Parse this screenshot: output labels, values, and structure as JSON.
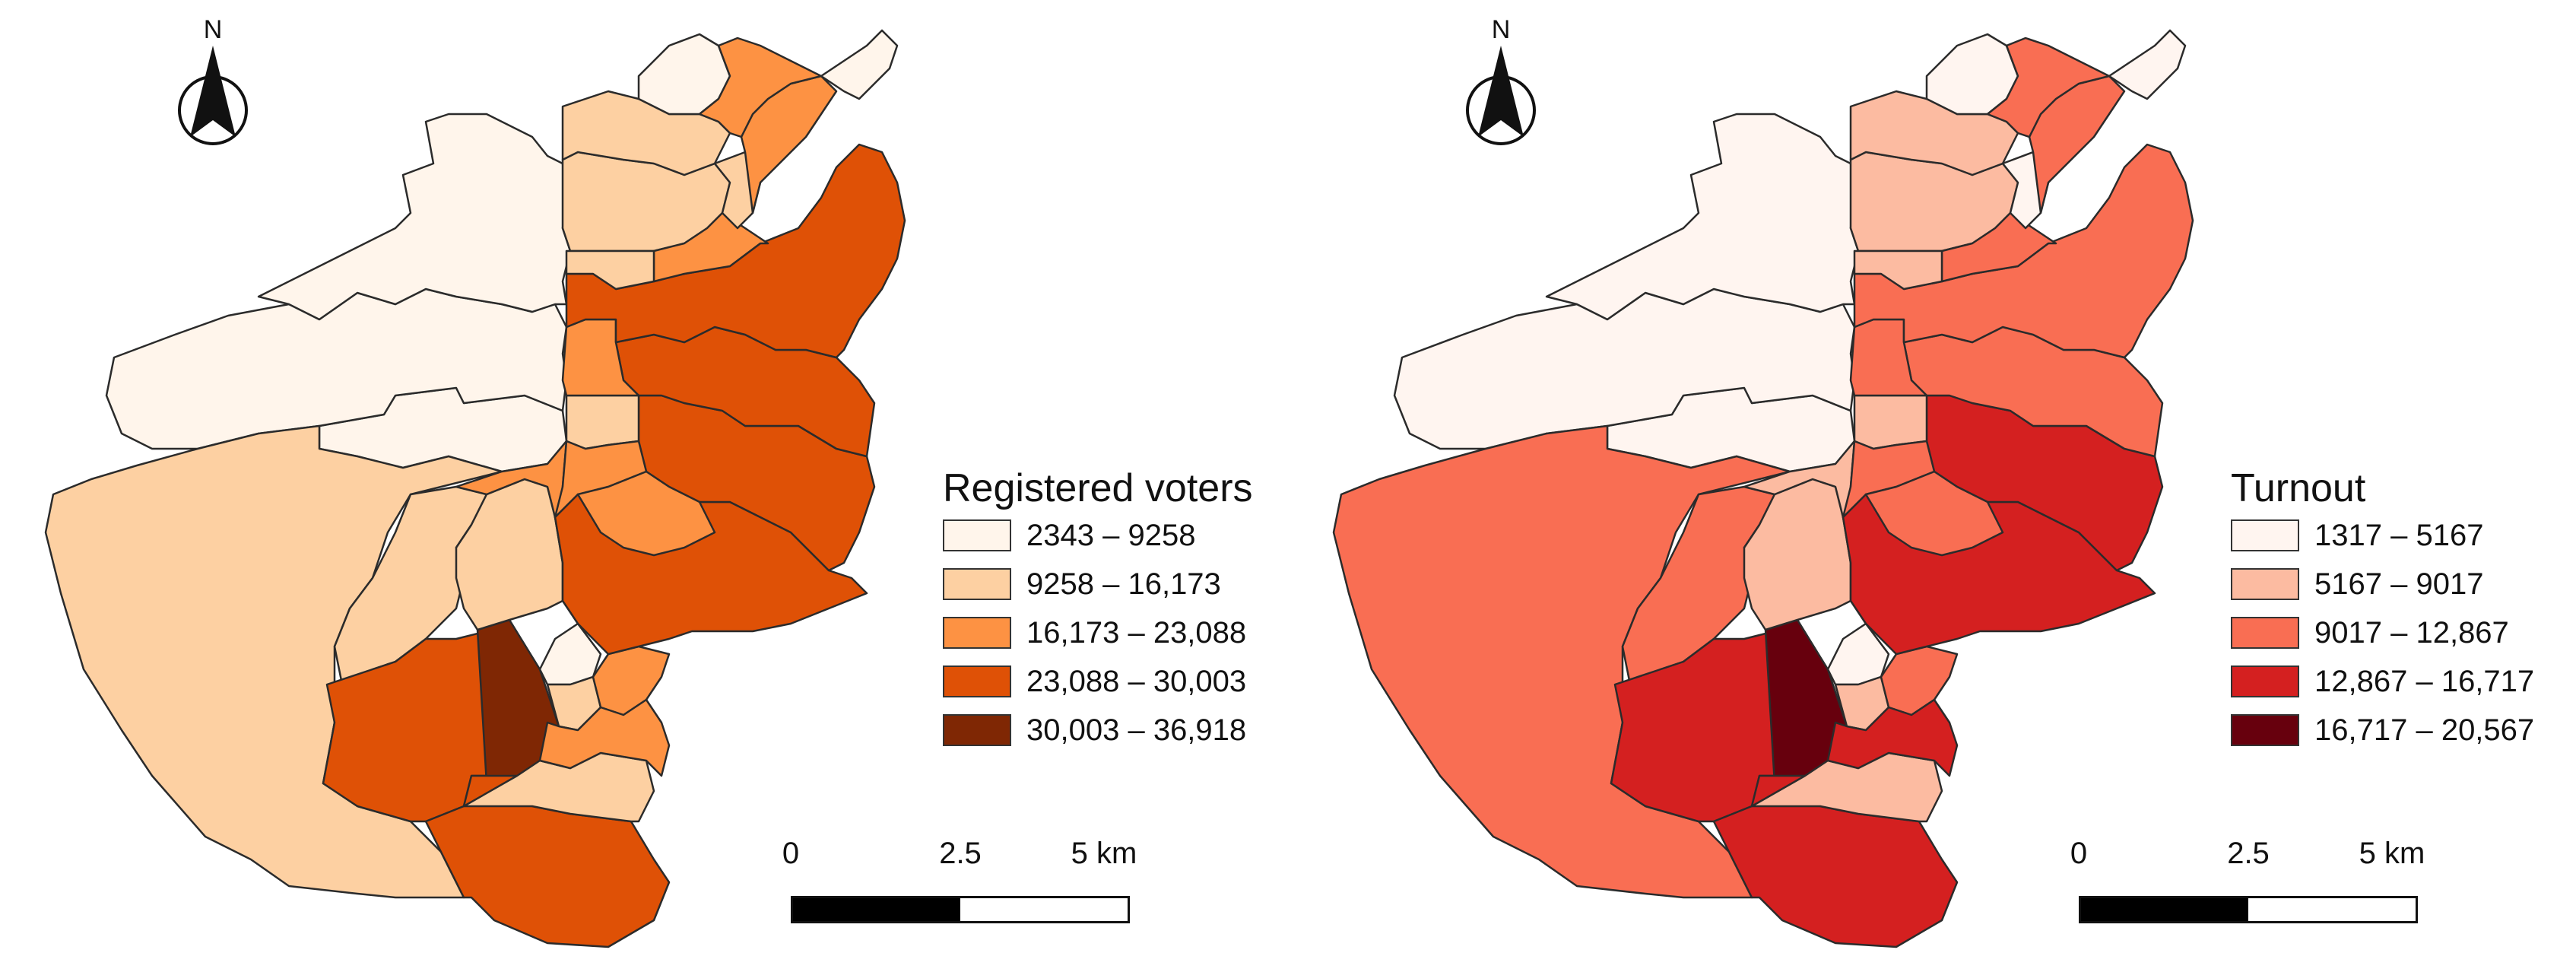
{
  "maps": [
    {
      "id": "registered",
      "north_label": "N",
      "legend": {
        "title": "Registered voters",
        "classes": [
          {
            "label": "2343 – 9258",
            "color": "#fff5eb"
          },
          {
            "label": "9258 – 16,173",
            "color": "#fdd0a2"
          },
          {
            "label": "16,173 – 23,088",
            "color": "#fd9243"
          },
          {
            "label": "23,088 – 30,003",
            "color": "#df5106"
          },
          {
            "label": "30,003 – 36,918",
            "color": "#7f2704"
          }
        ]
      },
      "scale": {
        "labels": [
          "0",
          "2.5",
          "5 km"
        ],
        "colors": [
          "#000000",
          "#ffffff"
        ]
      }
    },
    {
      "id": "turnout",
      "north_label": "N",
      "legend": {
        "title": "Turnout",
        "classes": [
          {
            "label": "1317 – 5167",
            "color": "#fff5f0"
          },
          {
            "label": "5167 – 9017",
            "color": "#fcbba1"
          },
          {
            "label": "9017 – 12,867",
            "color": "#f96e53"
          },
          {
            "label": "12,867 – 16,717",
            "color": "#d42020"
          },
          {
            "label": "16,717 – 20,567",
            "color": "#67000d"
          }
        ]
      },
      "scale": {
        "labels": [
          "0",
          "2.5",
          "5 km"
        ],
        "colors": [
          "#000000",
          "#ffffff"
        ]
      }
    }
  ],
  "districts": [
    {
      "name": "d1",
      "class_registered": 0,
      "class_turnout": 0
    },
    {
      "name": "d2",
      "class_registered": 0,
      "class_turnout": 0
    },
    {
      "name": "d3",
      "class_registered": 0,
      "class_turnout": 0
    },
    {
      "name": "d4",
      "class_registered": 1,
      "class_turnout": 2
    },
    {
      "name": "d5",
      "class_registered": 1,
      "class_turnout": 2
    },
    {
      "name": "d6",
      "class_registered": 3,
      "class_turnout": 3
    },
    {
      "name": "d7",
      "class_registered": 4,
      "class_turnout": 4
    },
    {
      "name": "d8",
      "class_registered": 1,
      "class_turnout": 1
    },
    {
      "name": "d9",
      "class_registered": 3,
      "class_turnout": 3
    },
    {
      "name": "d10",
      "class_registered": 1,
      "class_turnout": 1
    },
    {
      "name": "d11",
      "class_registered": 2,
      "class_turnout": 1
    },
    {
      "name": "d12",
      "class_registered": 0,
      "class_turnout": 0
    },
    {
      "name": "d13",
      "class_registered": 1,
      "class_turnout": 1
    },
    {
      "name": "d14",
      "class_registered": 2,
      "class_turnout": 2
    },
    {
      "name": "d15",
      "class_registered": 3,
      "class_turnout": 3
    },
    {
      "name": "d16",
      "class_registered": 2,
      "class_turnout": 3
    },
    {
      "name": "d17",
      "class_registered": 3,
      "class_turnout": 3
    },
    {
      "name": "d18",
      "class_registered": 1,
      "class_turnout": 1
    },
    {
      "name": "d19",
      "class_registered": 2,
      "class_turnout": 2
    },
    {
      "name": "d20",
      "class_registered": 2,
      "class_turnout": 2
    },
    {
      "name": "d21",
      "class_registered": 3,
      "class_turnout": 2
    },
    {
      "name": "d22",
      "class_registered": 2,
      "class_turnout": 2
    },
    {
      "name": "d23",
      "class_registered": 3,
      "class_turnout": 2
    },
    {
      "name": "d24",
      "class_registered": 1,
      "class_turnout": 1
    },
    {
      "name": "d25",
      "class_registered": 1,
      "class_turnout": 1
    },
    {
      "name": "d26",
      "class_registered": 2,
      "class_turnout": 2
    },
    {
      "name": "d27",
      "class_registered": 1,
      "class_turnout": 1
    },
    {
      "name": "d28",
      "class_registered": 0,
      "class_turnout": 0
    },
    {
      "name": "d29",
      "class_registered": 1,
      "class_turnout": 0
    },
    {
      "name": "d30",
      "class_registered": 2,
      "class_turnout": 2
    },
    {
      "name": "d31",
      "class_registered": 0,
      "class_turnout": 0
    },
    {
      "name": "d32",
      "class_registered": 2,
      "class_turnout": 2
    }
  ]
}
